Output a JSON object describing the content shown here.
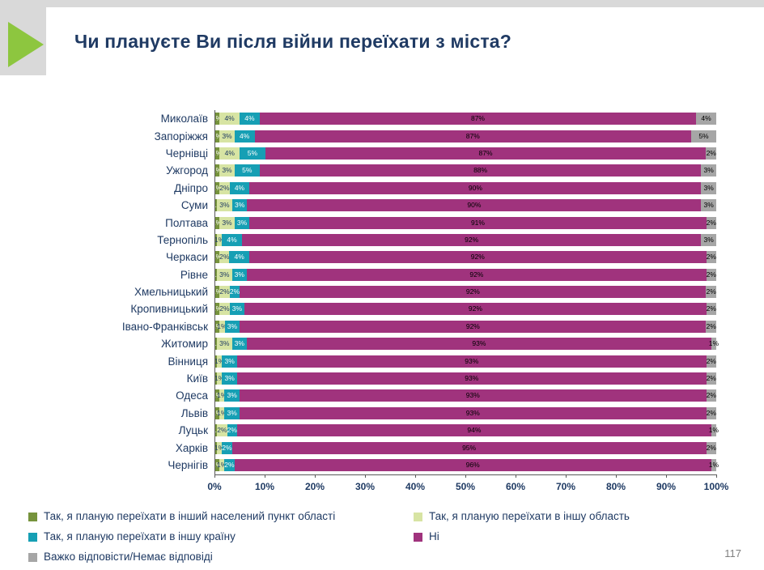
{
  "title": "Чи плануєте Ви після війни переїхати з міста?",
  "page_number": "117",
  "colors": {
    "accent_green": "#8dc63f",
    "title_navy": "#1f3a63",
    "strip_gray": "#d9d9d9"
  },
  "chart_data": {
    "type": "bar",
    "stacked": true,
    "orientation": "horizontal",
    "xlim": [
      0,
      100
    ],
    "x_ticks": [
      "0%",
      "10%",
      "20%",
      "30%",
      "40%",
      "50%",
      "60%",
      "70%",
      "80%",
      "90%",
      "100%"
    ],
    "legend_position": "bottom",
    "series": [
      {
        "name": "Так, я планую переїхати в інший населений пункт області",
        "color": "#76933c",
        "label_color": "#ffffff"
      },
      {
        "name": "Так, я планую переїхати в іншу область",
        "color": "#d7e4a3",
        "label_color": "#1f3a63"
      },
      {
        "name": "Так, я планую переїхати в іншу країну",
        "color": "#169fb4",
        "label_color": "#ffffff"
      },
      {
        "name": "Ні",
        "color": "#a0337d",
        "label_color": "#000000"
      },
      {
        "name": "Важко відповісти/Немає відповіді",
        "color": "#a6a6a6",
        "label_color": "#000000"
      }
    ],
    "rows": [
      {
        "city": "Миколаїв",
        "values": [
          1,
          4,
          4,
          87,
          4
        ],
        "labels": [
          "1%",
          "4%",
          "4%",
          "87%",
          "4%"
        ]
      },
      {
        "city": "Запоріжжя",
        "values": [
          1,
          3,
          4,
          87,
          5
        ],
        "labels": [
          "1%",
          "3%",
          "4%",
          "87%",
          "5%"
        ]
      },
      {
        "city": "Чернівці",
        "values": [
          1,
          4,
          5,
          87,
          2
        ],
        "labels": [
          "1%",
          "4%",
          "5%",
          "87%",
          "2%"
        ]
      },
      {
        "city": "Ужгород",
        "values": [
          1,
          3,
          5,
          88,
          3
        ],
        "labels": [
          "1%",
          "3%",
          "5%",
          "88%",
          "3%"
        ]
      },
      {
        "city": "Дніпро",
        "values": [
          1,
          2,
          4,
          90,
          3
        ],
        "labels": [
          "1%",
          "2%",
          "4%",
          "90%",
          "3%"
        ]
      },
      {
        "city": "Суми",
        "values": [
          0.5,
          3,
          3,
          90,
          3
        ],
        "labels": [
          "<1%",
          "3%",
          "3%",
          "90%",
          "3%"
        ]
      },
      {
        "city": "Полтава",
        "values": [
          1,
          3,
          3,
          91,
          2
        ],
        "labels": [
          "1%",
          "3%",
          "3%",
          "91%",
          "2%"
        ]
      },
      {
        "city": "Тернопіль",
        "values": [
          0.5,
          1,
          4,
          92,
          3
        ],
        "labels": [
          "<1%",
          "1%",
          "4%",
          "92%",
          "3%"
        ]
      },
      {
        "city": "Черкаси",
        "values": [
          1,
          2,
          4,
          92,
          2
        ],
        "labels": [
          "1%",
          "2%",
          "4%",
          "92%",
          "2%"
        ]
      },
      {
        "city": "Рівне",
        "values": [
          0.5,
          3,
          3,
          92,
          2
        ],
        "labels": [
          "<1%",
          "3%",
          "3%",
          "92%",
          "2%"
        ]
      },
      {
        "city": "Хмельницький",
        "values": [
          1,
          2,
          2,
          92,
          2
        ],
        "labels": [
          "1%",
          "2%",
          "2%",
          "92%",
          "2%"
        ]
      },
      {
        "city": "Кропивницький",
        "values": [
          1,
          2,
          3,
          92,
          2
        ],
        "labels": [
          "1%",
          "2%",
          "3%",
          "92%",
          "2%"
        ]
      },
      {
        "city": "Івано-Франківськ",
        "values": [
          1,
          1,
          3,
          92,
          2
        ],
        "labels": [
          "1%",
          "1%",
          "3%",
          "92%",
          "2%"
        ]
      },
      {
        "city": "Житомир",
        "values": [
          0.5,
          3,
          3,
          93,
          1
        ],
        "labels": [
          "<1%",
          "3%",
          "3%",
          "93%",
          "1%"
        ]
      },
      {
        "city": "Вінниця",
        "values": [
          0.5,
          1,
          3,
          93,
          2
        ],
        "labels": [
          "<1%",
          "1%",
          "3%",
          "93%",
          "2%"
        ]
      },
      {
        "city": "Київ",
        "values": [
          0.5,
          1,
          3,
          93,
          2
        ],
        "labels": [
          "<1%",
          "1%",
          "3%",
          "93%",
          "2%"
        ]
      },
      {
        "city": "Одеса",
        "values": [
          1,
          1,
          3,
          93,
          2
        ],
        "labels": [
          "1%",
          "1%",
          "3%",
          "93%",
          "2%"
        ]
      },
      {
        "city": "Львів",
        "values": [
          1,
          1,
          3,
          93,
          2
        ],
        "labels": [
          "1%",
          "1%",
          "3%",
          "93%",
          "2%"
        ]
      },
      {
        "city": "Луцьк",
        "values": [
          0.5,
          2,
          2,
          94,
          1
        ],
        "labels": [
          "<1%",
          "2%",
          "2%",
          "94%",
          "1%"
        ]
      },
      {
        "city": "Харків",
        "values": [
          0.5,
          1,
          2,
          95,
          2
        ],
        "labels": [
          "<1%",
          "1%",
          "2%",
          "95%",
          "2%"
        ]
      },
      {
        "city": "Чернігів",
        "values": [
          1,
          1,
          2,
          96,
          1
        ],
        "labels": [
          "1%",
          "1%",
          "2%",
          "96%",
          "1%"
        ]
      }
    ]
  }
}
